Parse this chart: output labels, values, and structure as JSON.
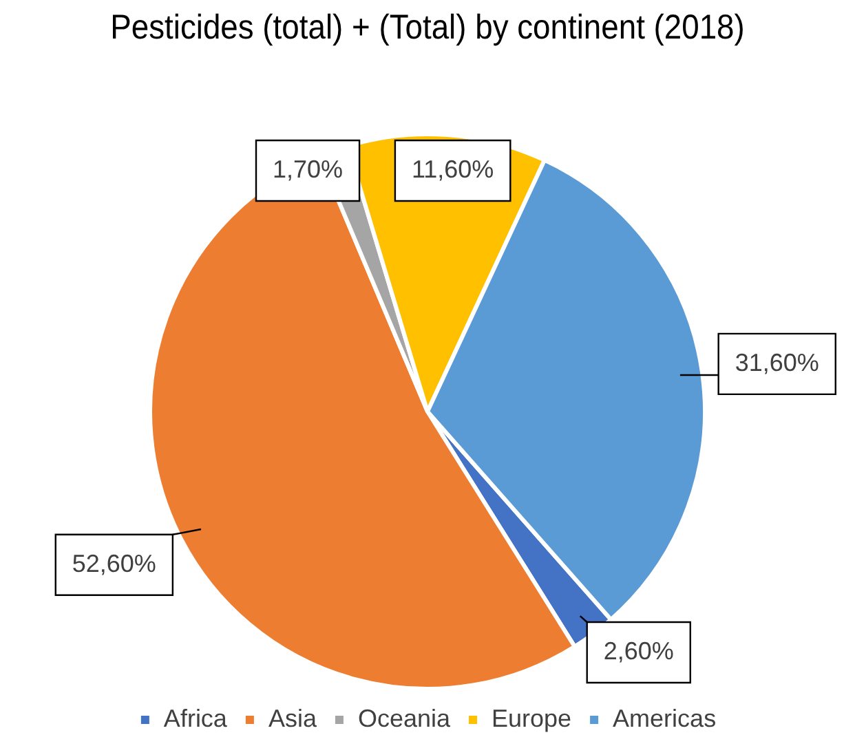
{
  "chart_data": {
    "type": "pie",
    "title": "Pesticides (total) + (Total) by continent (2018)",
    "categories": [
      "Africa",
      "Asia",
      "Oceania",
      "Europe",
      "Americas"
    ],
    "values": [
      2.6,
      52.6,
      1.7,
      11.6,
      31.6
    ],
    "colors": [
      "#4472c4",
      "#ed7d31",
      "#a5a5a5",
      "#ffc000",
      "#5b9bd5"
    ],
    "value_labels": [
      "2,60%",
      "52,60%",
      "1,70%",
      "11,60%",
      "31,60%"
    ],
    "legend": "bottom"
  }
}
